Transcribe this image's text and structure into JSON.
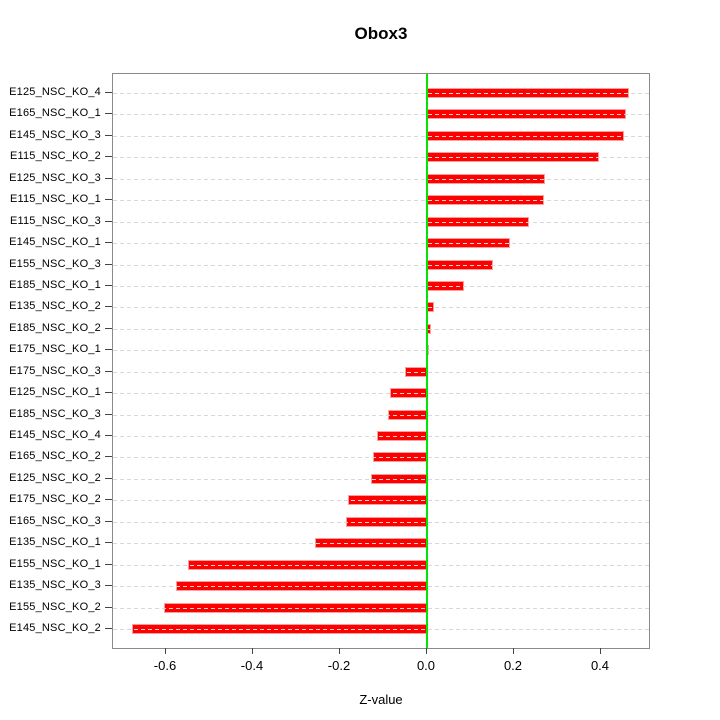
{
  "chart_data": {
    "type": "bar",
    "orientation": "horizontal",
    "title": "Obox3",
    "xlabel": "Z-value",
    "categories": [
      "E125_NSC_KO_4",
      "E165_NSC_KO_1",
      "E145_NSC_KO_3",
      "E115_NSC_KO_2",
      "E125_NSC_KO_3",
      "E115_NSC_KO_1",
      "E115_NSC_KO_3",
      "E145_NSC_KO_1",
      "E155_NSC_KO_3",
      "E185_NSC_KO_1",
      "E135_NSC_KO_2",
      "E185_NSC_KO_2",
      "E175_NSC_KO_1",
      "E175_NSC_KO_3",
      "E125_NSC_KO_1",
      "E185_NSC_KO_3",
      "E145_NSC_KO_4",
      "E165_NSC_KO_2",
      "E125_NSC_KO_2",
      "E175_NSC_KO_2",
      "E165_NSC_KO_3",
      "E135_NSC_KO_1",
      "E155_NSC_KO_1",
      "E135_NSC_KO_3",
      "E155_NSC_KO_2",
      "E145_NSC_KO_2"
    ],
    "values": [
      0.465,
      0.458,
      0.452,
      0.395,
      0.272,
      0.27,
      0.235,
      0.19,
      0.152,
      0.086,
      0.015,
      0.01,
      0.002,
      -0.051,
      -0.084,
      -0.09,
      -0.116,
      -0.123,
      -0.129,
      -0.181,
      -0.186,
      -0.257,
      -0.55,
      -0.577,
      -0.604,
      -0.678
    ],
    "x_ticks": [
      -0.6,
      -0.4,
      -0.2,
      0.0,
      0.2,
      0.4
    ],
    "x_tick_labels": [
      "-0.6",
      "-0.4",
      "-0.2",
      "0.0",
      "0.2",
      "0.4"
    ],
    "xlim": [
      -0.72,
      0.51
    ],
    "grid": "dashed horizontal line per category, drawn over bars",
    "legend": "none",
    "colors": {
      "bar": "#fe0000",
      "bar_border": "#ff9d9d",
      "zero_line": "#00e600",
      "gridline": "#d8d8d8",
      "box_border": "#8a8a8a",
      "tick": "#444444",
      "text": "#000000",
      "background": "#ffffff"
    }
  }
}
